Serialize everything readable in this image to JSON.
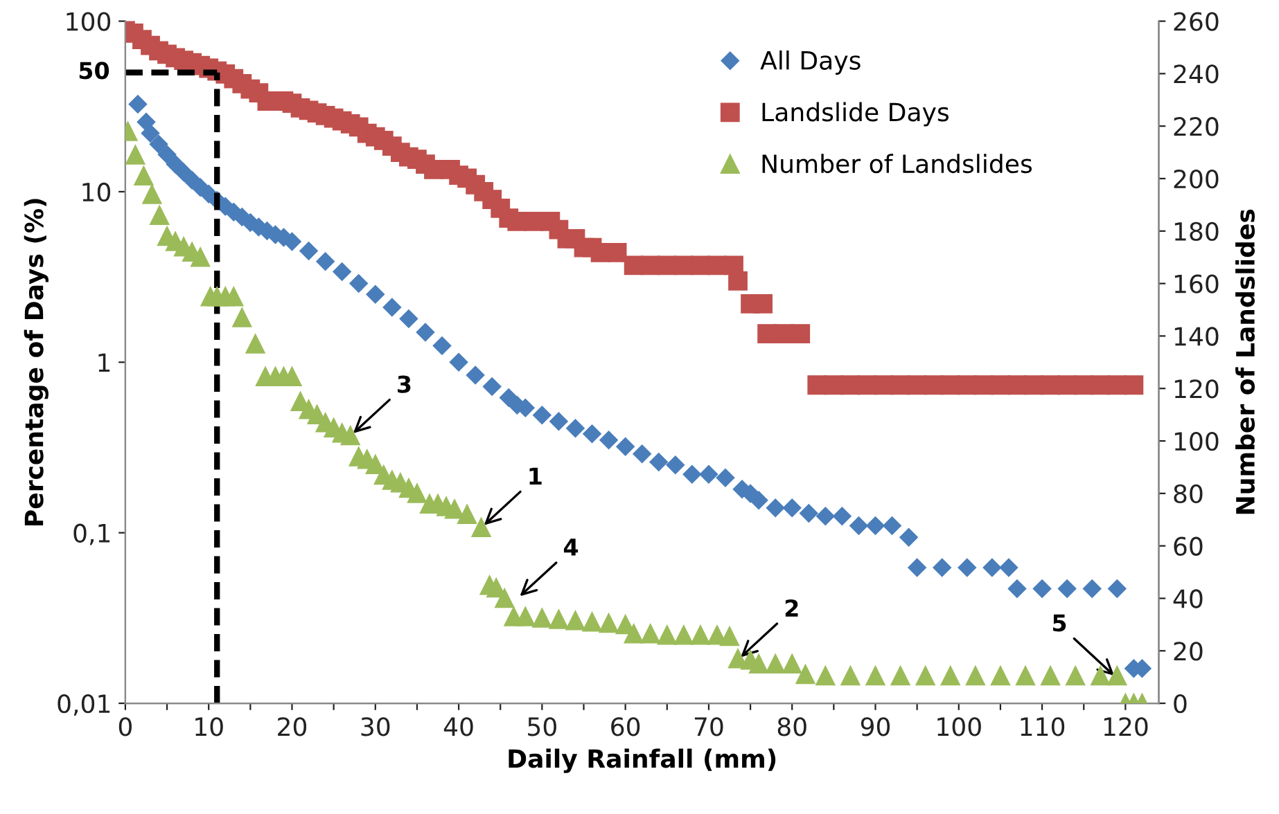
{
  "chart_data": {
    "type": "scatter",
    "xlabel": "Daily Rainfall (mm)",
    "ylabel": "Percentage of Days (%)",
    "y2label": "Number of Landslides",
    "log": "y",
    "legend": "top right",
    "grid": false,
    "xlim": [
      0,
      124
    ],
    "xticks": [
      0,
      {
        "value": 5,
        "label": null
      },
      10,
      {
        "value": 15,
        "label": null
      },
      20,
      {
        "value": 25,
        "label": null
      },
      30,
      {
        "value": 35,
        "label": null
      },
      40,
      {
        "value": 45,
        "label": null
      },
      50,
      {
        "value": 55,
        "label": null
      },
      60,
      {
        "value": 65,
        "label": null
      },
      70,
      {
        "value": 75,
        "label": null
      },
      80,
      {
        "value": 85,
        "label": null
      },
      90,
      {
        "value": 95,
        "label": null
      },
      100,
      {
        "value": 105,
        "label": null
      },
      110,
      {
        "value": 115,
        "label": null
      },
      120
    ],
    "ylim": [
      0.01,
      100
    ],
    "yticks": [
      {
        "value": 0.01,
        "label": "0,01"
      },
      {
        "value": 0.1,
        "label": "0,1"
      },
      1,
      10,
      100
    ],
    "y2lim": [
      0,
      260
    ],
    "y2ticks": [
      0,
      20,
      40,
      60,
      80,
      100,
      120,
      140,
      160,
      180,
      200,
      220,
      240,
      260
    ],
    "series": [
      {
        "name": "All Days",
        "color": "#4a7ebb",
        "marker": "diamond",
        "x": [
          1.5,
          2.5,
          3,
          4,
          5,
          6,
          7,
          8,
          9,
          10,
          11,
          12,
          13,
          14,
          15,
          16,
          17,
          18,
          19,
          20,
          22,
          24,
          26,
          28,
          30,
          32,
          34,
          36,
          38,
          40,
          42,
          44,
          46,
          47,
          48,
          50,
          52,
          54,
          56,
          58,
          60,
          62,
          64,
          66,
          68,
          70,
          72,
          74,
          75,
          76,
          78,
          80,
          82,
          84,
          86,
          88,
          90,
          92,
          94,
          95,
          98,
          101,
          104,
          106,
          107,
          110,
          113,
          116,
          119,
          121,
          122
        ],
        "values": [
          32.6,
          25.6,
          22,
          19,
          16.5,
          14.5,
          13,
          11.7,
          10.6,
          9.7,
          8.9,
          8.2,
          7.6,
          7.1,
          6.6,
          6.2,
          5.9,
          5.6,
          5.4,
          5.1,
          4.5,
          3.9,
          3.4,
          2.9,
          2.5,
          2.1,
          1.8,
          1.5,
          1.25,
          1.0,
          0.84,
          0.72,
          0.62,
          0.56,
          0.54,
          0.49,
          0.45,
          0.41,
          0.38,
          0.35,
          0.32,
          0.29,
          0.26,
          0.25,
          0.22,
          0.22,
          0.21,
          0.18,
          0.17,
          0.155,
          0.14,
          0.14,
          0.13,
          0.125,
          0.125,
          0.11,
          0.11,
          0.11,
          0.094,
          0.0625,
          0.0625,
          0.0625,
          0.0625,
          0.0625,
          0.047,
          0.047,
          0.047,
          0.047,
          0.047,
          0.016,
          0.016
        ]
      },
      {
        "name": "Landslide Days",
        "color": "#c0504d",
        "marker": "square",
        "x": [
          0,
          1,
          2,
          3,
          4,
          5,
          6,
          7,
          8,
          9,
          10,
          11,
          12,
          13,
          14,
          15,
          16,
          17,
          19,
          20,
          21,
          22,
          23,
          24,
          25,
          26,
          27,
          28,
          29,
          30,
          31,
          32,
          33,
          34,
          35,
          36,
          37,
          39,
          40,
          41,
          42,
          43,
          44,
          45,
          46,
          47,
          49,
          51,
          52,
          53,
          54,
          55,
          56,
          57,
          59,
          61,
          63,
          65,
          67,
          69,
          71,
          73,
          73.5,
          75,
          76.5,
          77,
          79,
          81,
          83,
          85,
          87,
          89,
          91,
          93,
          95,
          97,
          99,
          101,
          103,
          105,
          107,
          109,
          111,
          113,
          115,
          117,
          119,
          121
        ],
        "values": [
          100,
          85,
          78,
          72,
          67,
          64,
          61,
          59,
          57,
          55,
          53,
          51,
          49,
          46,
          43,
          40,
          38,
          34,
          34,
          33,
          31,
          30,
          29,
          28,
          27,
          26,
          25,
          24,
          22,
          21,
          20,
          18.5,
          17,
          16,
          15.5,
          14.5,
          13.5,
          13.5,
          12.5,
          12,
          11,
          10,
          9,
          8,
          7,
          6.7,
          6.7,
          6.7,
          6.0,
          5.3,
          5.3,
          4.7,
          4.7,
          4.4,
          4.4,
          3.7,
          3.7,
          3.7,
          3.7,
          3.7,
          3.7,
          3.7,
          3.0,
          2.2,
          2.2,
          1.47,
          1.47,
          1.47,
          0.735,
          0.735,
          0.735,
          0.735,
          0.735,
          0.735,
          0.735,
          0.735,
          0.735,
          0.735,
          0.735,
          0.735,
          0.735,
          0.735,
          0.735,
          0.735,
          0.735,
          0.735,
          0.735,
          0.735
        ]
      },
      {
        "name": "Number of Landslides",
        "color": "#9bbb59",
        "marker": "triangle",
        "axis": "y2",
        "x": [
          0.3,
          1.2,
          2.2,
          3.2,
          4.1,
          5,
          6,
          7,
          8,
          9,
          10.2,
          11,
          12,
          13,
          14,
          15.6,
          16.8,
          18,
          19,
          20,
          21,
          22,
          23,
          24,
          25,
          26,
          27,
          28,
          29,
          30,
          31,
          32,
          33,
          34,
          35,
          36.5,
          37.5,
          38.5,
          39.5,
          41,
          42.7,
          43.7,
          44.5,
          45.5,
          46.6,
          48,
          50,
          52,
          54,
          56,
          58,
          60,
          61,
          63,
          65,
          67,
          69,
          71,
          72.5,
          73.5,
          75,
          76,
          78,
          80,
          81.6,
          84,
          87,
          90,
          93,
          96,
          99,
          102,
          105,
          108,
          111,
          114,
          117,
          119,
          120,
          121,
          122
        ],
        "values": [
          218,
          209,
          201,
          194,
          186,
          178,
          176,
          174,
          172,
          170,
          155,
          155,
          155,
          155,
          147,
          137,
          124.5,
          124.5,
          124.5,
          124.5,
          115,
          112,
          110,
          107,
          105,
          103,
          102,
          94,
          93,
          91,
          87,
          85,
          84,
          82,
          80,
          76,
          76,
          75,
          74,
          72,
          67,
          45,
          44,
          40,
          33,
          33,
          32.5,
          32,
          31.5,
          31,
          30.5,
          30,
          26.5,
          26.5,
          26,
          26,
          26,
          26,
          25.5,
          17,
          16.5,
          15,
          15,
          15,
          11,
          10.5,
          10.5,
          10.5,
          10.5,
          10.5,
          10.5,
          10.5,
          10.5,
          10.5,
          10.5,
          10.5,
          10.5,
          10.5,
          0,
          0,
          0
        ]
      }
    ],
    "ref_lines": [
      {
        "axis": "y",
        "value": 50,
        "label": "50",
        "color": "#000000",
        "line_style": "dashed"
      },
      {
        "axis": "x",
        "value": 11,
        "color": "#000000",
        "line_style": "dashed"
      }
    ],
    "annotations": [
      {
        "text": "3",
        "x": 27,
        "y": 0.37
      },
      {
        "text": "1",
        "x": 42.7,
        "y": 0.107
      },
      {
        "text": "4",
        "x": 47,
        "y": 0.041
      },
      {
        "text": "2",
        "x": 73.5,
        "y": 0.018
      },
      {
        "text": "5",
        "x": 119,
        "y": 0.014
      }
    ]
  }
}
